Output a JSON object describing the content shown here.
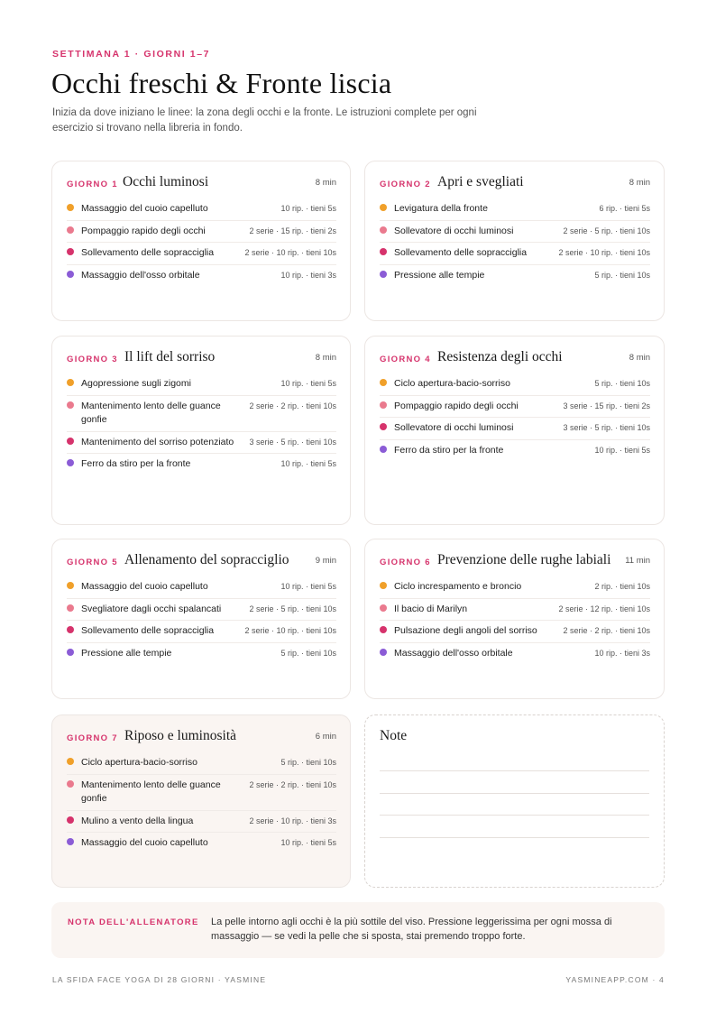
{
  "header": {
    "kicker": "SETTIMANA 1 · GIORNI 1–7",
    "title": "Occhi freschi & Fronte liscia",
    "intro": "Inizia da dove iniziano le linee: la zona degli occhi e la fronte. Le istruzioni complete per ogni esercizio si trovano nella libreria in fondo."
  },
  "colors": {
    "accent": "#d6336c",
    "dot_1": "#f0a02a",
    "dot_2": "#ea7a8e",
    "dot_3": "#d6336c",
    "dot_4": "#8b5cd6",
    "rest_card_bg": "#faf5f2"
  },
  "days": [
    {
      "tag": "GIORNO 1",
      "title": "Occhi luminosi",
      "duration": "8 min",
      "exercises": [
        {
          "name": "Massaggio del cuoio capelluto",
          "meta": "10 rip. · tieni 5s"
        },
        {
          "name": "Pompaggio rapido degli occhi",
          "meta": "2 serie · 15 rip. · tieni 2s"
        },
        {
          "name": "Sollevamento delle sopracciglia",
          "meta": "2 serie · 10 rip. · tieni 10s"
        },
        {
          "name": "Massaggio dell'osso orbitale",
          "meta": "10 rip. · tieni 3s"
        }
      ]
    },
    {
      "tag": "GIORNO 2",
      "title": "Apri e svegliati",
      "duration": "8 min",
      "exercises": [
        {
          "name": "Levigatura della fronte",
          "meta": "6 rip. · tieni 5s"
        },
        {
          "name": "Sollevatore di occhi luminosi",
          "meta": "2 serie · 5 rip. · tieni 10s"
        },
        {
          "name": "Sollevamento delle sopracciglia",
          "meta": "2 serie · 10 rip. · tieni 10s"
        },
        {
          "name": "Pressione alle tempie",
          "meta": "5 rip. · tieni 10s"
        }
      ]
    },
    {
      "tag": "GIORNO 3",
      "title": "Il lift del sorriso",
      "duration": "8 min",
      "exercises": [
        {
          "name": "Agopressione sugli zigomi",
          "meta": "10 rip. · tieni 5s"
        },
        {
          "name": "Mantenimento lento delle guance gonfie",
          "meta": "2 serie · 2 rip. · tieni 10s"
        },
        {
          "name": "Mantenimento del sorriso potenziato",
          "meta": "3 serie · 5 rip. · tieni 10s"
        },
        {
          "name": "Ferro da stiro per la fronte",
          "meta": "10 rip. · tieni 5s"
        }
      ]
    },
    {
      "tag": "GIORNO 4",
      "title": "Resistenza degli occhi",
      "duration": "8 min",
      "exercises": [
        {
          "name": "Ciclo apertura-bacio-sorriso",
          "meta": "5 rip. · tieni 10s"
        },
        {
          "name": "Pompaggio rapido degli occhi",
          "meta": "3 serie · 15 rip. · tieni 2s"
        },
        {
          "name": "Sollevatore di occhi luminosi",
          "meta": "3 serie · 5 rip. · tieni 10s"
        },
        {
          "name": "Ferro da stiro per la fronte",
          "meta": "10 rip. · tieni 5s"
        }
      ]
    },
    {
      "tag": "GIORNO 5",
      "title": "Allenamento del sopracciglio",
      "duration": "9 min",
      "exercises": [
        {
          "name": "Massaggio del cuoio capelluto",
          "meta": "10 rip. · tieni 5s"
        },
        {
          "name": "Svegliatore dagli occhi spalancati",
          "meta": "2 serie · 5 rip. · tieni 10s"
        },
        {
          "name": "Sollevamento delle sopracciglia",
          "meta": "2 serie · 10 rip. · tieni 10s"
        },
        {
          "name": "Pressione alle tempie",
          "meta": "5 rip. · tieni 10s"
        }
      ]
    },
    {
      "tag": "GIORNO 6",
      "title": "Prevenzione delle rughe labiali",
      "duration": "11 min",
      "exercises": [
        {
          "name": "Ciclo increspamento e broncio",
          "meta": "2 rip. · tieni 10s"
        },
        {
          "name": "Il bacio di Marilyn",
          "meta": "2 serie · 12 rip. · tieni 10s"
        },
        {
          "name": "Pulsazione degli angoli del sorriso",
          "meta": "2 serie · 2 rip. · tieni 10s"
        },
        {
          "name": "Massaggio dell'osso orbitale",
          "meta": "10 rip. · tieni 3s"
        }
      ]
    },
    {
      "tag": "GIORNO 7",
      "title": "Riposo e luminosità",
      "duration": "6 min",
      "exercises": [
        {
          "name": "Ciclo apertura-bacio-sorriso",
          "meta": "5 rip. · tieni 10s"
        },
        {
          "name": "Mantenimento lento delle guance gonfie",
          "meta": "2 serie · 2 rip. · tieni 10s"
        },
        {
          "name": "Mulino a vento della lingua",
          "meta": "2 serie · 10 rip. · tieni 3s"
        },
        {
          "name": "Massaggio del cuoio capelluto",
          "meta": "10 rip. · tieni 5s"
        }
      ]
    }
  ],
  "notes": {
    "title": "Note"
  },
  "coach_note": {
    "label": "NOTA DELL'ALLENATORE",
    "text": "La pelle intorno agli occhi è la più sottile del viso. Pressione leggerissima per ogni mossa di massaggio — se vedi la pelle che si sposta, stai premendo troppo forte."
  },
  "footer": {
    "left": "LA SFIDA FACE YOGA DI 28 GIORNI · YASMINE",
    "right": "YASMINEAPP.COM · 4"
  }
}
